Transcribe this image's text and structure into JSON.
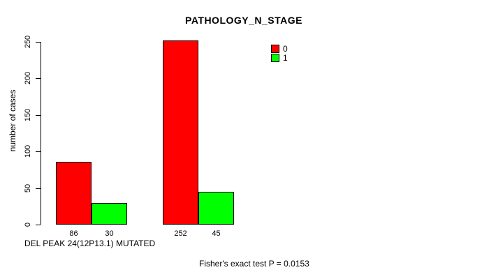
{
  "chart_data": {
    "type": "bar",
    "title": "PATHOLOGY_N_STAGE",
    "ylabel": "number of cases",
    "xlabel": "DEL PEAK 24(12P13.1) MUTATED",
    "annotation": "Fisher's exact test P = 0.0153",
    "yticks": [
      0,
      50,
      100,
      150,
      200,
      250
    ],
    "ylim": [
      0,
      265
    ],
    "grid": false,
    "legend_position": "top-right",
    "series": [
      {
        "name": "0",
        "color": "#ff0000",
        "values": [
          86,
          252
        ]
      },
      {
        "name": "1",
        "color": "#00ff00",
        "values": [
          30,
          45
        ]
      }
    ],
    "show_bar_values": true
  },
  "colors": {
    "bar_border": "#000000",
    "text": "#000000",
    "background": "#ffffff"
  }
}
